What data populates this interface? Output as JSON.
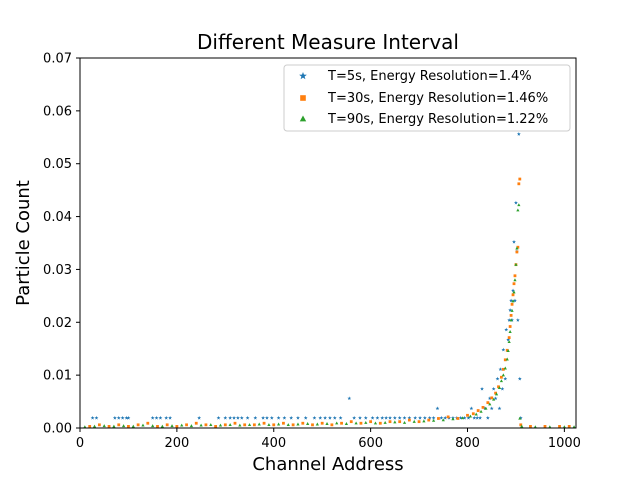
{
  "chart_data": {
    "type": "scatter",
    "title": "Different Measure Interval",
    "xlabel": "Channel Address",
    "ylabel": "Particle Count",
    "xlim": [
      0,
      1024
    ],
    "ylim": [
      0,
      0.07
    ],
    "xticks": [
      "0",
      "200",
      "400",
      "600",
      "800",
      "1000"
    ],
    "xtick_values": [
      0,
      200,
      400,
      600,
      800,
      1000
    ],
    "yticks": [
      "0.00",
      "0.01",
      "0.02",
      "0.03",
      "0.04",
      "0.05",
      "0.06",
      "0.07"
    ],
    "ytick_values": [
      0,
      0.01,
      0.02,
      0.03,
      0.04,
      0.05,
      0.06,
      0.07
    ],
    "grid": false,
    "legend_position": "upper-right",
    "series": [
      {
        "name": "T=5s, Energy Resolution=1.4%",
        "color": "#1f77b4",
        "marker": "star",
        "points": [
          [
            26,
            0.0019
          ],
          [
            34,
            0.0019
          ],
          [
            72,
            0.0019
          ],
          [
            80,
            0.0019
          ],
          [
            88,
            0.0019
          ],
          [
            96,
            0.0019
          ],
          [
            100,
            0.0019
          ],
          [
            150,
            0.0019
          ],
          [
            158,
            0.0019
          ],
          [
            166,
            0.0019
          ],
          [
            178,
            0.0019
          ],
          [
            186,
            0.0019
          ],
          [
            246,
            0.0019
          ],
          [
            286,
            0.0019
          ],
          [
            300,
            0.0019
          ],
          [
            310,
            0.0019
          ],
          [
            318,
            0.0019
          ],
          [
            326,
            0.0019
          ],
          [
            334,
            0.0019
          ],
          [
            346,
            0.0019
          ],
          [
            362,
            0.0019
          ],
          [
            378,
            0.0019
          ],
          [
            386,
            0.0019
          ],
          [
            396,
            0.0019
          ],
          [
            410,
            0.0019
          ],
          [
            422,
            0.0019
          ],
          [
            436,
            0.0019
          ],
          [
            450,
            0.0019
          ],
          [
            466,
            0.0019
          ],
          [
            484,
            0.0019
          ],
          [
            496,
            0.0019
          ],
          [
            506,
            0.0019
          ],
          [
            516,
            0.0019
          ],
          [
            526,
            0.0019
          ],
          [
            538,
            0.0019
          ],
          [
            556,
            0.0056
          ],
          [
            566,
            0.0019
          ],
          [
            578,
            0.0019
          ],
          [
            590,
            0.0019
          ],
          [
            604,
            0.0019
          ],
          [
            614,
            0.0019
          ],
          [
            624,
            0.0019
          ],
          [
            632,
            0.0019
          ],
          [
            640,
            0.0019
          ],
          [
            650,
            0.0019
          ],
          [
            660,
            0.0019
          ],
          [
            670,
            0.0019
          ],
          [
            680,
            0.0019
          ],
          [
            692,
            0.0019
          ],
          [
            702,
            0.0019
          ],
          [
            712,
            0.0019
          ],
          [
            722,
            0.0019
          ],
          [
            730,
            0.0019
          ],
          [
            738,
            0.0037
          ],
          [
            746,
            0.0019
          ],
          [
            754,
            0.0019
          ],
          [
            762,
            0.0019
          ],
          [
            770,
            0.0019
          ],
          [
            778,
            0.0019
          ],
          [
            786,
            0.0019
          ],
          [
            794,
            0.0019
          ],
          [
            802,
            0.0019
          ],
          [
            808,
            0.0037
          ],
          [
            814,
            0.0019
          ],
          [
            820,
            0.0019
          ],
          [
            826,
            0.0019
          ],
          [
            830,
            0.0074
          ],
          [
            836,
            0.0037
          ],
          [
            842,
            0.0019
          ],
          [
            846,
            0.0056
          ],
          [
            850,
            0.0037
          ],
          [
            854,
            0.0074
          ],
          [
            858,
            0.0056
          ],
          [
            862,
            0.0093
          ],
          [
            866,
            0.0037
          ],
          [
            868,
            0.0111
          ],
          [
            872,
            0.0074
          ],
          [
            874,
            0.0148
          ],
          [
            878,
            0.0093
          ],
          [
            880,
            0.0186
          ],
          [
            884,
            0.0167
          ],
          [
            886,
            0.0204
          ],
          [
            888,
            0.0223
          ],
          [
            890,
            0.0241
          ],
          [
            892,
            0.0204
          ],
          [
            894,
            0.026
          ],
          [
            896,
            0.0352
          ],
          [
            898,
            0.0241
          ],
          [
            900,
            0.0426
          ],
          [
            902,
            0.0334
          ],
          [
            904,
            0.0204
          ],
          [
            906,
            0.0556
          ],
          [
            908,
            0.0093
          ],
          [
            910,
            0.0019
          ]
        ]
      },
      {
        "name": "T=30s, Energy Resolution=1.46%",
        "color": "#ff7f0e",
        "marker": "square",
        "points": [
          [
            20,
            0.0003
          ],
          [
            40,
            0.0006
          ],
          [
            60,
            0.0003
          ],
          [
            80,
            0.0006
          ],
          [
            100,
            0.0003
          ],
          [
            120,
            0.0006
          ],
          [
            140,
            0.0009
          ],
          [
            160,
            0.0003
          ],
          [
            180,
            0.0006
          ],
          [
            200,
            0.0003
          ],
          [
            220,
            0.0006
          ],
          [
            240,
            0.0009
          ],
          [
            260,
            0.0006
          ],
          [
            280,
            0.0003
          ],
          [
            300,
            0.0006
          ],
          [
            320,
            0.0009
          ],
          [
            340,
            0.0006
          ],
          [
            360,
            0.0006
          ],
          [
            380,
            0.0009
          ],
          [
            400,
            0.0006
          ],
          [
            420,
            0.0009
          ],
          [
            440,
            0.0006
          ],
          [
            460,
            0.0009
          ],
          [
            480,
            0.0006
          ],
          [
            500,
            0.0009
          ],
          [
            520,
            0.0006
          ],
          [
            540,
            0.0009
          ],
          [
            560,
            0.0012
          ],
          [
            580,
            0.0009
          ],
          [
            600,
            0.0012
          ],
          [
            620,
            0.0009
          ],
          [
            640,
            0.0012
          ],
          [
            660,
            0.0012
          ],
          [
            680,
            0.0015
          ],
          [
            700,
            0.0012
          ],
          [
            720,
            0.0015
          ],
          [
            740,
            0.0018
          ],
          [
            760,
            0.0021
          ],
          [
            780,
            0.0018
          ],
          [
            800,
            0.0024
          ],
          [
            812,
            0.0027
          ],
          [
            822,
            0.0033
          ],
          [
            832,
            0.0039
          ],
          [
            842,
            0.0048
          ],
          [
            850,
            0.0057
          ],
          [
            858,
            0.0066
          ],
          [
            864,
            0.0078
          ],
          [
            870,
            0.0096
          ],
          [
            874,
            0.0111
          ],
          [
            878,
            0.0129
          ],
          [
            882,
            0.0147
          ],
          [
            886,
            0.0171
          ],
          [
            888,
            0.0192
          ],
          [
            890,
            0.0213
          ],
          [
            892,
            0.0234
          ],
          [
            894,
            0.0252
          ],
          [
            896,
            0.0273
          ],
          [
            898,
            0.0288
          ],
          [
            900,
            0.0309
          ],
          [
            902,
            0.0333
          ],
          [
            904,
            0.0342
          ],
          [
            906,
            0.0462
          ],
          [
            908,
            0.0471
          ],
          [
            910,
            0.0006
          ],
          [
            930,
            0.0003
          ],
          [
            960,
            0.0003
          ],
          [
            990,
            0.0003
          ],
          [
            1010,
            0.0003
          ]
        ]
      },
      {
        "name": "T=90s, Energy Resolution=1.22%",
        "color": "#2ca02c",
        "marker": "triangle",
        "points": [
          [
            10,
            0.0002
          ],
          [
            30,
            0.0003
          ],
          [
            50,
            0.0004
          ],
          [
            70,
            0.0003
          ],
          [
            90,
            0.0004
          ],
          [
            110,
            0.0003
          ],
          [
            130,
            0.0005
          ],
          [
            150,
            0.0004
          ],
          [
            170,
            0.0003
          ],
          [
            190,
            0.0004
          ],
          [
            210,
            0.0005
          ],
          [
            230,
            0.0004
          ],
          [
            250,
            0.0005
          ],
          [
            270,
            0.0006
          ],
          [
            290,
            0.0005
          ],
          [
            310,
            0.0006
          ],
          [
            330,
            0.0005
          ],
          [
            350,
            0.0006
          ],
          [
            370,
            0.0007
          ],
          [
            390,
            0.0006
          ],
          [
            410,
            0.0007
          ],
          [
            430,
            0.0006
          ],
          [
            450,
            0.0007
          ],
          [
            470,
            0.0008
          ],
          [
            490,
            0.0007
          ],
          [
            510,
            0.0008
          ],
          [
            530,
            0.0009
          ],
          [
            550,
            0.0008
          ],
          [
            570,
            0.0009
          ],
          [
            590,
            0.001
          ],
          [
            610,
            0.0009
          ],
          [
            630,
            0.001
          ],
          [
            650,
            0.0011
          ],
          [
            670,
            0.001
          ],
          [
            690,
            0.0012
          ],
          [
            710,
            0.0013
          ],
          [
            730,
            0.0014
          ],
          [
            750,
            0.0015
          ],
          [
            770,
            0.0017
          ],
          [
            790,
            0.0019
          ],
          [
            806,
            0.0022
          ],
          [
            818,
            0.0026
          ],
          [
            828,
            0.0031
          ],
          [
            838,
            0.0037
          ],
          [
            846,
            0.0045
          ],
          [
            854,
            0.0054
          ],
          [
            860,
            0.0064
          ],
          [
            866,
            0.0076
          ],
          [
            870,
            0.0089
          ],
          [
            874,
            0.01
          ],
          [
            878,
            0.0113
          ],
          [
            882,
            0.013
          ],
          [
            884,
            0.0146
          ],
          [
            886,
            0.0163
          ],
          [
            888,
            0.0182
          ],
          [
            890,
            0.0204
          ],
          [
            892,
            0.0222
          ],
          [
            894,
            0.024
          ],
          [
            896,
            0.0257
          ],
          [
            898,
            0.028
          ],
          [
            900,
            0.0309
          ],
          [
            902,
            0.034
          ],
          [
            904,
            0.0412
          ],
          [
            906,
            0.0422
          ],
          [
            908,
            0.0018
          ],
          [
            912,
            0.0003
          ],
          [
            940,
            0.0002
          ],
          [
            970,
            0.0002
          ],
          [
            1000,
            0.0002
          ],
          [
            1020,
            0.0002
          ]
        ]
      }
    ]
  }
}
